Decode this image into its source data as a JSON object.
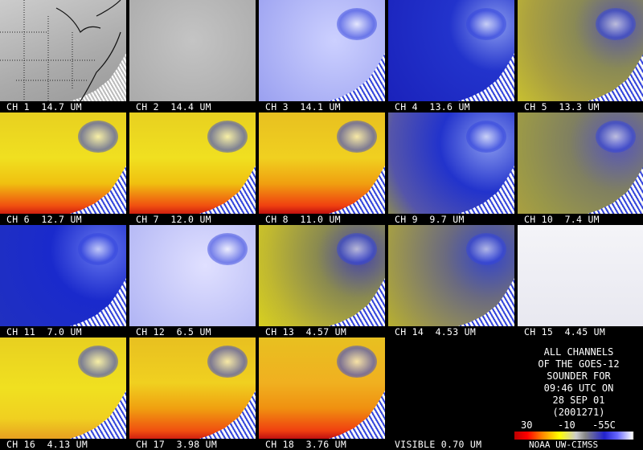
{
  "panels": [
    {
      "label": "CH 1  14.7 UM"
    },
    {
      "label": "CH 2  14.4 UM"
    },
    {
      "label": "CH 3  14.1 UM"
    },
    {
      "label": "CH 4  13.6 UM"
    },
    {
      "label": "CH 5  13.3 UM"
    },
    {
      "label": "CH 6  12.7 UM"
    },
    {
      "label": "CH 7  12.0 UM"
    },
    {
      "label": "CH 8  11.0 UM"
    },
    {
      "label": "CH 9  9.7 UM"
    },
    {
      "label": "CH 10  7.4 UM"
    },
    {
      "label": "CH 11  7.0 UM"
    },
    {
      "label": "CH 12  6.5 UM"
    },
    {
      "label": "CH 13  4.57 UM"
    },
    {
      "label": "CH 14  4.53 UM"
    },
    {
      "label": "CH 15  4.45 UM"
    },
    {
      "label": "CH 16  4.13 UM"
    },
    {
      "label": "CH 17  3.98 UM"
    },
    {
      "label": "CH 18  3.76 UM"
    },
    {
      "label": "VISIBLE 0.70 UM"
    }
  ],
  "info": {
    "lines": [
      "ALL CHANNELS",
      "OF THE GOES-12",
      "SOUNDER FOR",
      "09:46 UTC ON",
      "28 SEP 01",
      "(2001271)"
    ]
  },
  "scale": {
    "labels": [
      "30",
      "-10",
      "-55C"
    ],
    "credit": "NOAA UW-CIMSS"
  }
}
